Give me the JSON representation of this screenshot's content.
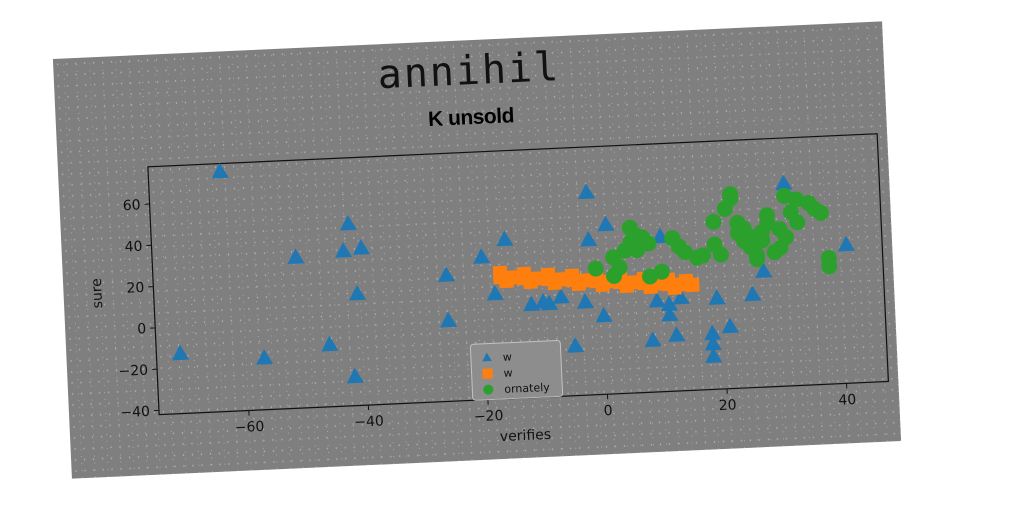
{
  "figure": {
    "super_title": "annihil",
    "background": "#7f7f7f"
  },
  "chart_data": {
    "type": "scatter",
    "title": "K unsold",
    "xlabel": "verifies",
    "ylabel": "sure",
    "xlim": [
      -75,
      47
    ],
    "ylim": [
      -42,
      78
    ],
    "xticks": [
      -60,
      -40,
      -20,
      0,
      20,
      40
    ],
    "yticks": [
      -40,
      -20,
      0,
      20,
      40,
      60
    ],
    "grid": false,
    "legend_position": "lower-center",
    "series": [
      {
        "name": "w",
        "marker": "triangle",
        "color": "#1f77b4",
        "points": [
          [
            -63,
            74
          ],
          [
            -71,
            -13
          ],
          [
            -57,
            -17
          ],
          [
            -51,
            31
          ],
          [
            -46,
            -12
          ],
          [
            -42,
            46
          ],
          [
            -43,
            33
          ],
          [
            -40,
            34
          ],
          [
            -41,
            12
          ],
          [
            -42,
            -28
          ],
          [
            -26,
            19
          ],
          [
            -26,
            -3
          ],
          [
            -20,
            27
          ],
          [
            -16,
            35
          ],
          [
            -18,
            9
          ],
          [
            -12,
            3
          ],
          [
            -10,
            4
          ],
          [
            -9,
            3
          ],
          [
            -7,
            6
          ],
          [
            -5,
            -18
          ],
          [
            -2,
            56
          ],
          [
            -3,
            3
          ],
          [
            -2,
            33
          ],
          [
            0,
            -4
          ],
          [
            1,
            40
          ],
          [
            8,
            -17
          ],
          [
            9,
            2
          ],
          [
            10,
            33
          ],
          [
            11,
            0
          ],
          [
            11,
            -5
          ],
          [
            12,
            -15
          ],
          [
            13,
            3
          ],
          [
            18,
            -15
          ],
          [
            18,
            -20
          ],
          [
            18,
            -26
          ],
          [
            19,
            2
          ],
          [
            21,
            -12
          ],
          [
            25,
            3
          ],
          [
            27,
            14
          ],
          [
            31,
            56
          ],
          [
            41,
            25
          ]
        ]
      },
      {
        "name": "w",
        "marker": "square",
        "color": "#ff7f0e",
        "points": [
          [
            -17,
            17
          ],
          [
            -15,
            16.5
          ],
          [
            -13,
            16
          ],
          [
            -11,
            15.5
          ],
          [
            -9,
            15
          ],
          [
            -7,
            14.5
          ],
          [
            -5,
            14
          ],
          [
            -3,
            13.5
          ],
          [
            -1,
            13
          ],
          [
            1,
            12.5
          ],
          [
            3,
            12
          ],
          [
            5,
            11.5
          ],
          [
            7,
            11
          ],
          [
            9,
            10.5
          ],
          [
            11,
            10
          ],
          [
            13,
            9.5
          ],
          [
            15,
            9
          ],
          [
            -17,
            19
          ],
          [
            -13,
            18
          ],
          [
            -9,
            17
          ],
          [
            -5,
            16
          ],
          [
            -1,
            15
          ],
          [
            3,
            14
          ],
          [
            7,
            13
          ],
          [
            11,
            12
          ],
          [
            14,
            11
          ],
          [
            -16,
            15
          ],
          [
            -12,
            14
          ],
          [
            -8,
            13
          ],
          [
            -4,
            12
          ],
          [
            0,
            11
          ],
          [
            4,
            10
          ],
          [
            8,
            9
          ],
          [
            12,
            8
          ]
        ]
      },
      {
        "name": "ornately",
        "marker": "circle",
        "color": "#2ca02c",
        "points": [
          [
            -1,
            19
          ],
          [
            2,
            24
          ],
          [
            2,
            15
          ],
          [
            3,
            19
          ],
          [
            4,
            27
          ],
          [
            5,
            31
          ],
          [
            5,
            38
          ],
          [
            6,
            34
          ],
          [
            7,
            33
          ],
          [
            8,
            30
          ],
          [
            10,
            16
          ],
          [
            12,
            32
          ],
          [
            13,
            28
          ],
          [
            14,
            25
          ],
          [
            16,
            22
          ],
          [
            17,
            23
          ],
          [
            19,
            39
          ],
          [
            20,
            23
          ],
          [
            21,
            45
          ],
          [
            22,
            50
          ],
          [
            22,
            52
          ],
          [
            23,
            38
          ],
          [
            23,
            33
          ],
          [
            24,
            29
          ],
          [
            24,
            35
          ],
          [
            25,
            31
          ],
          [
            25,
            26
          ],
          [
            26,
            22
          ],
          [
            26,
            20
          ],
          [
            27,
            29
          ],
          [
            27,
            33
          ],
          [
            28,
            41
          ],
          [
            29,
            23
          ],
          [
            30,
            34
          ],
          [
            31,
            30
          ],
          [
            31,
            50
          ],
          [
            32,
            42
          ],
          [
            33,
            37
          ],
          [
            35,
            46
          ],
          [
            36,
            43
          ],
          [
            37,
            41
          ],
          [
            38,
            19
          ],
          [
            38,
            15
          ],
          [
            8,
            14
          ],
          [
            19,
            28
          ],
          [
            28,
            37
          ],
          [
            33,
            48
          ],
          [
            30,
            25
          ],
          [
            6,
            27
          ]
        ]
      }
    ]
  }
}
